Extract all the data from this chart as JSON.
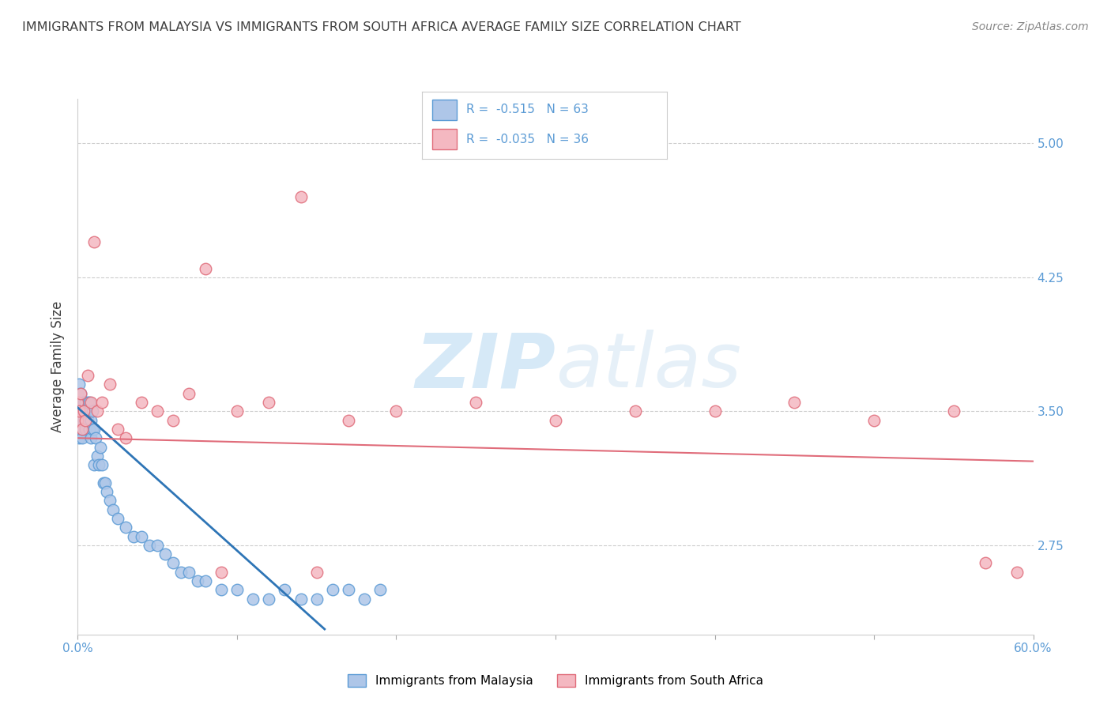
{
  "title": "IMMIGRANTS FROM MALAYSIA VS IMMIGRANTS FROM SOUTH AFRICA AVERAGE FAMILY SIZE CORRELATION CHART",
  "source": "Source: ZipAtlas.com",
  "ylabel": "Average Family Size",
  "xlim": [
    0.0,
    0.6
  ],
  "ylim": [
    2.25,
    5.25
  ],
  "yticks": [
    2.75,
    3.5,
    4.25,
    5.0
  ],
  "xtick_positions": [
    0.0,
    0.1,
    0.2,
    0.3,
    0.4,
    0.5,
    0.6
  ],
  "xtick_label_positions": [
    0.0,
    0.6
  ],
  "xtick_labels_shown": [
    "0.0%",
    "60.0%"
  ],
  "right_ytick_labels": [
    "5.00",
    "4.25",
    "3.50",
    "2.75"
  ],
  "right_ytick_positions": [
    5.0,
    4.25,
    3.5,
    2.75
  ],
  "malaysia_color": "#aec6e8",
  "malaysia_edge_color": "#5b9bd5",
  "malaysia_line_color": "#2e75b6",
  "south_africa_color": "#f4b8c1",
  "south_africa_edge_color": "#e06c7a",
  "south_africa_line_color": "#e06c7a",
  "watermark_zip": "ZIP",
  "watermark_atlas": "atlas",
  "legend_R_malaysia": "R =  -0.515",
  "legend_N_malaysia": "N = 63",
  "legend_R_south_africa": "R =  -0.035",
  "legend_N_south_africa": "N = 36",
  "malaysia_x": [
    0.0,
    0.0,
    0.0,
    0.0,
    0.0,
    0.001,
    0.001,
    0.001,
    0.001,
    0.002,
    0.002,
    0.002,
    0.003,
    0.003,
    0.003,
    0.004,
    0.004,
    0.005,
    0.005,
    0.005,
    0.006,
    0.006,
    0.007,
    0.007,
    0.008,
    0.008,
    0.009,
    0.009,
    0.01,
    0.01,
    0.011,
    0.012,
    0.013,
    0.014,
    0.015,
    0.016,
    0.017,
    0.018,
    0.02,
    0.022,
    0.025,
    0.03,
    0.035,
    0.04,
    0.045,
    0.05,
    0.055,
    0.06,
    0.065,
    0.07,
    0.075,
    0.08,
    0.09,
    0.1,
    0.11,
    0.12,
    0.13,
    0.14,
    0.15,
    0.16,
    0.17,
    0.18,
    0.19
  ],
  "malaysia_y": [
    3.5,
    3.55,
    3.45,
    3.6,
    3.4,
    3.65,
    3.55,
    3.45,
    3.35,
    3.5,
    3.4,
    3.6,
    3.35,
    3.5,
    3.4,
    3.45,
    3.55,
    3.5,
    3.4,
    3.55,
    3.45,
    3.55,
    3.4,
    3.55,
    3.35,
    3.45,
    3.4,
    3.5,
    3.2,
    3.4,
    3.35,
    3.25,
    3.2,
    3.3,
    3.2,
    3.1,
    3.1,
    3.05,
    3.0,
    2.95,
    2.9,
    2.85,
    2.8,
    2.8,
    2.75,
    2.75,
    2.7,
    2.65,
    2.6,
    2.6,
    2.55,
    2.55,
    2.5,
    2.5,
    2.45,
    2.45,
    2.5,
    2.45,
    2.45,
    2.5,
    2.5,
    2.45,
    2.5
  ],
  "south_africa_x": [
    0.0,
    0.0,
    0.001,
    0.002,
    0.003,
    0.004,
    0.005,
    0.006,
    0.008,
    0.01,
    0.012,
    0.015,
    0.02,
    0.025,
    0.03,
    0.04,
    0.05,
    0.06,
    0.07,
    0.08,
    0.09,
    0.1,
    0.12,
    0.14,
    0.15,
    0.17,
    0.2,
    0.25,
    0.3,
    0.35,
    0.4,
    0.45,
    0.5,
    0.55,
    0.57,
    0.59
  ],
  "south_africa_y": [
    3.45,
    3.55,
    3.5,
    3.6,
    3.4,
    3.5,
    3.45,
    3.7,
    3.55,
    4.45,
    3.5,
    3.55,
    3.65,
    3.4,
    3.35,
    3.55,
    3.5,
    3.45,
    3.6,
    4.3,
    2.6,
    3.5,
    3.55,
    4.7,
    2.6,
    3.45,
    3.5,
    3.55,
    3.45,
    3.5,
    3.5,
    3.55,
    3.45,
    3.5,
    2.65,
    2.6
  ],
  "malaysia_trendline_x": [
    0.0,
    0.155
  ],
  "malaysia_trendline_y": [
    3.52,
    2.28
  ],
  "south_africa_trendline_x": [
    0.0,
    0.6
  ],
  "south_africa_trendline_y": [
    3.35,
    3.22
  ],
  "background_color": "#ffffff",
  "grid_color": "#cccccc",
  "title_color": "#404040",
  "axis_label_color": "#404040",
  "tick_color": "#5b9bd5"
}
